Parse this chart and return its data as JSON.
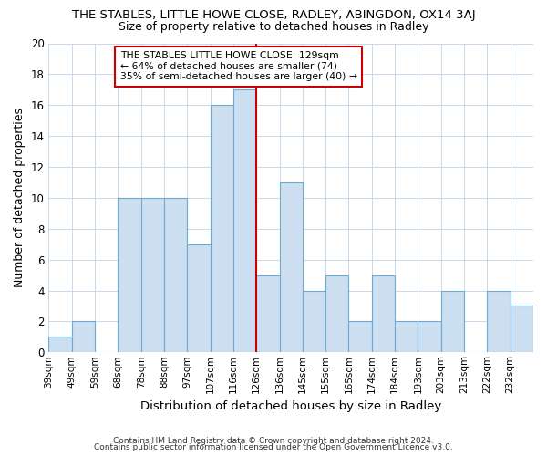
{
  "title": "THE STABLES, LITTLE HOWE CLOSE, RADLEY, ABINGDON, OX14 3AJ",
  "subtitle": "Size of property relative to detached houses in Radley",
  "xlabel": "Distribution of detached houses by size in Radley",
  "ylabel": "Number of detached properties",
  "categories": [
    "39sqm",
    "49sqm",
    "59sqm",
    "68sqm",
    "78sqm",
    "88sqm",
    "97sqm",
    "107sqm",
    "116sqm",
    "126sqm",
    "136sqm",
    "145sqm",
    "155sqm",
    "165sqm",
    "174sqm",
    "184sqm",
    "193sqm",
    "203sqm",
    "213sqm",
    "222sqm",
    "232sqm"
  ],
  "values": [
    1,
    2,
    0,
    10,
    10,
    10,
    7,
    16,
    17,
    5,
    11,
    4,
    5,
    2,
    5,
    2,
    2,
    4,
    0,
    4,
    3
  ],
  "bar_color": "#ccdff0",
  "bar_edge_color": "#6aaad4",
  "vline_index": 9,
  "vline_color": "#cc0000",
  "annotation_text": "THE STABLES LITTLE HOWE CLOSE: 129sqm\n← 64% of detached houses are smaller (74)\n35% of semi-detached houses are larger (40) →",
  "annotation_box_color": "#cc0000",
  "ylim": [
    0,
    20
  ],
  "yticks": [
    0,
    2,
    4,
    6,
    8,
    10,
    12,
    14,
    16,
    18,
    20
  ],
  "footer1": "Contains HM Land Registry data © Crown copyright and database right 2024.",
  "footer2": "Contains public sector information licensed under the Open Government Licence v3.0.",
  "background_color": "#ffffff",
  "grid_color": "#c0d4e8"
}
